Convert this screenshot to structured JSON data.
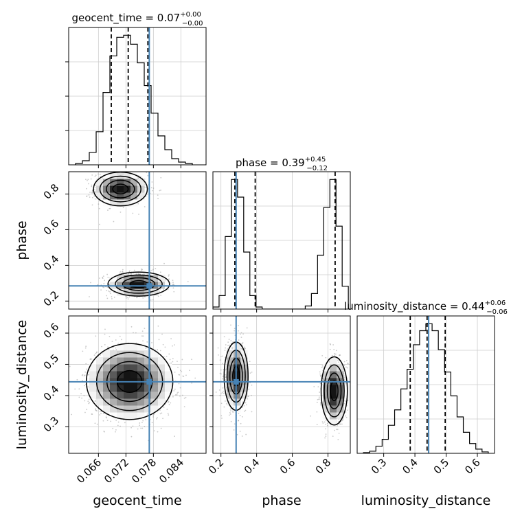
{
  "chart_data": {
    "type": "scatter",
    "subtype": "corner-plot",
    "parameters": [
      "geocent_time",
      "phase",
      "luminosity_distance"
    ],
    "truth_color": "#4682b4",
    "truths": {
      "geocent_time": 0.0771,
      "phase": 0.285,
      "luminosity_distance": 0.444
    },
    "titles": [
      {
        "name": "geocent_time",
        "median": "0.07",
        "plus": "+0.00",
        "minus": "−0.00"
      },
      {
        "name": "phase",
        "median": "0.39",
        "plus": "+0.45",
        "minus": "−0.12"
      },
      {
        "name": "luminosity_distance",
        "median": "0.44",
        "plus": "+0.06",
        "minus": "−0.06"
      }
    ],
    "axes": {
      "geocent_time": {
        "range": [
          0.0595,
          0.0895
        ],
        "ticks": [
          "0.066",
          "0.072",
          "0.078",
          "0.084"
        ],
        "tick_values": [
          0.066,
          0.072,
          0.078,
          0.084
        ]
      },
      "phase": {
        "range": [
          0.155,
          0.925
        ],
        "ticks": [
          "0.2",
          "0.4",
          "0.6",
          "0.8"
        ],
        "tick_values": [
          0.2,
          0.4,
          0.6,
          0.8
        ]
      },
      "luminosity_distance": {
        "range": [
          0.215,
          0.655
        ],
        "ticks": [
          "0.3",
          "0.4",
          "0.5",
          "0.6"
        ],
        "tick_values": [
          0.3,
          0.4,
          0.5,
          0.6
        ]
      }
    },
    "axis_labels": {
      "x": [
        "geocent_time",
        "phase",
        "luminosity_distance"
      ],
      "y": [
        "phase",
        "luminosity_distance"
      ]
    },
    "grid": true,
    "histograms": [
      {
        "param": "geocent_time",
        "quantiles": [
          0.0688,
          0.0725,
          0.0768
        ],
        "bins": [
          0.061,
          0.0625,
          0.064,
          0.0655,
          0.067,
          0.0685,
          0.07,
          0.0715,
          0.073,
          0.0745,
          0.076,
          0.0775,
          0.079,
          0.0805,
          0.082,
          0.0835,
          0.085,
          0.0865
        ],
        "counts": [
          2,
          6,
          18,
          48,
          105,
          158,
          185,
          188,
          175,
          148,
          115,
          75,
          42,
          22,
          9,
          4,
          2
        ]
      },
      {
        "param": "phase",
        "quantiles": [
          0.278,
          0.392,
          0.84
        ],
        "bins": [
          0.155,
          0.1895,
          0.224,
          0.2585,
          0.293,
          0.3275,
          0.362,
          0.3965,
          0.431,
          0.4655,
          0.5,
          0.5345,
          0.569,
          0.6035,
          0.638,
          0.6725,
          0.707,
          0.7415,
          0.776,
          0.8105,
          0.845,
          0.8795,
          0.914
        ],
        "counts": [
          2,
          13,
          70,
          125,
          108,
          55,
          13,
          2,
          0,
          0,
          0,
          0,
          0,
          0,
          0,
          3,
          15,
          52,
          98,
          125,
          80,
          22
        ]
      },
      {
        "param": "luminosity_distance",
        "quantiles": [
          0.385,
          0.439,
          0.497
        ],
        "bins": [
          0.235,
          0.255,
          0.275,
          0.295,
          0.315,
          0.335,
          0.355,
          0.375,
          0.395,
          0.415,
          0.435,
          0.455,
          0.475,
          0.495,
          0.515,
          0.535,
          0.555,
          0.575,
          0.595,
          0.615,
          0.635
        ],
        "counts": [
          1,
          3,
          10,
          20,
          40,
          62,
          92,
          120,
          155,
          175,
          185,
          175,
          148,
          116,
          82,
          52,
          30,
          14,
          6,
          2
        ]
      }
    ],
    "density_2d": [
      {
        "x": "geocent_time",
        "y": "phase",
        "modes": [
          {
            "cx": 0.0708,
            "cy": 0.828,
            "sx": 0.0028,
            "sy": 0.045,
            "weight": 0.5
          },
          {
            "cx": 0.0748,
            "cy": 0.295,
            "sx": 0.0032,
            "sy": 0.032,
            "weight": 0.5
          }
        ]
      },
      {
        "x": "geocent_time",
        "y": "luminosity_distance",
        "modes": [
          {
            "cx": 0.0728,
            "cy": 0.445,
            "sx": 0.0045,
            "sy": 0.058,
            "weight": 1.0
          }
        ]
      },
      {
        "x": "phase",
        "y": "luminosity_distance",
        "modes": [
          {
            "cx": 0.285,
            "cy": 0.462,
            "sx": 0.032,
            "sy": 0.052,
            "weight": 0.5
          },
          {
            "cx": 0.835,
            "cy": 0.415,
            "sx": 0.035,
            "sy": 0.052,
            "weight": 0.5
          }
        ]
      }
    ]
  }
}
